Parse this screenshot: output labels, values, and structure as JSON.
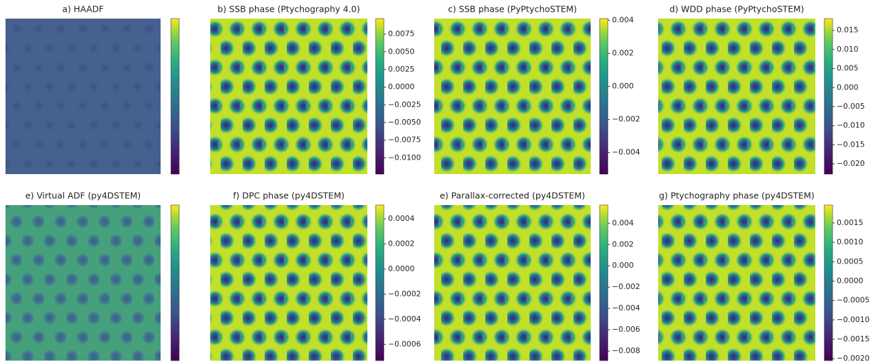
{
  "panels": [
    {
      "title": "a) HAADF"
    },
    {
      "title": "b) SSB phase (Ptychography 4.0)",
      "clim": [
        -0.0123,
        0.0097
      ],
      "ticks": [
        {
          "value": -0.01,
          "label": "−0.0100"
        },
        {
          "value": -0.0075,
          "label": "−0.0075"
        },
        {
          "value": -0.005,
          "label": "−0.0050"
        },
        {
          "value": -0.0025,
          "label": "−0.0025"
        },
        {
          "value": 0,
          "label": "0.0000"
        },
        0.0025,
        {
          "value": 0.005,
          "label": "0.0050"
        },
        0.0075
      ]
    },
    {
      "title": "c) SSB phase (PyPtychoSTEM)",
      "clim": [
        -0.0053,
        0.0041
      ],
      "ticks": [
        {
          "value": -0.004,
          "label": "−0.004"
        },
        {
          "value": -0.002,
          "label": "−0.002"
        },
        {
          "value": 0,
          "label": "0.000"
        },
        0.002,
        0.004
      ]
    },
    {
      "title": "d) WDD phase (PyPtychoSTEM)",
      "clim": [
        -0.0227,
        0.0181
      ],
      "ticks": [
        {
          "value": -0.02,
          "label": "−0.020"
        },
        {
          "value": -0.015,
          "label": "−0.015"
        },
        {
          "value": -0.01,
          "label": "−0.010"
        },
        {
          "value": -0.005,
          "label": "−0.005"
        },
        {
          "value": 0,
          "label": "0.000"
        },
        0.005,
        {
          "value": 0.01,
          "label": "0.010"
        },
        0.015
      ]
    },
    {
      "title": "e) Virtual ADF (py4DSTEM)"
    },
    {
      "title": "f) DPC phase (py4DSTEM)",
      "clim": [
        -0.00073,
        0.00051
      ],
      "ticks": [
        {
          "value": -0.0006,
          "label": "−0.0006"
        },
        {
          "value": -0.0004,
          "label": "−0.0004"
        },
        {
          "value": -0.0002,
          "label": "−0.0002"
        },
        {
          "value": 0,
          "label": "0.0000"
        },
        0.0002,
        0.0004
      ]
    },
    {
      "title": "e) Parallax-corrected (py4DSTEM)",
      "clim": [
        -0.0089,
        0.0057
      ],
      "ticks": [
        {
          "value": -0.008,
          "label": "−0.008"
        },
        {
          "value": -0.006,
          "label": "−0.006"
        },
        {
          "value": -0.004,
          "label": "−0.004"
        },
        {
          "value": -0.002,
          "label": "−0.002"
        },
        {
          "value": 0,
          "label": "0.000"
        },
        0.002,
        0.004
      ]
    },
    {
      "title": "g) Ptychography phase (py4DSTEM)",
      "clim": [
        -0.00205,
        0.00196
      ],
      "ticks": [
        {
          "value": -0.002,
          "label": "−0.0020"
        },
        {
          "value": -0.0015,
          "label": "−0.0015"
        },
        {
          "value": -0.001,
          "label": "−0.0010"
        },
        {
          "value": -0.0005,
          "label": "−0.0005"
        },
        {
          "value": 0,
          "label": "0.0000"
        },
        0.0005,
        {
          "value": 0.001,
          "label": "0.0010"
        },
        0.0015
      ]
    }
  ]
}
